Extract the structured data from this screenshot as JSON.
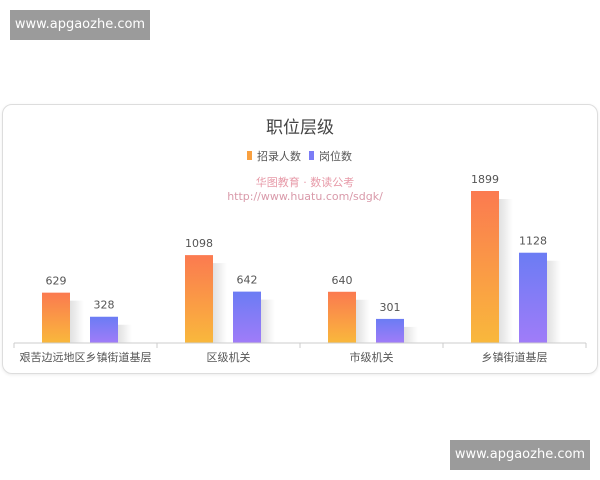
{
  "watermarks": [
    "www.apgaozhe.com",
    "www.apgaozhe.com"
  ],
  "chart_data": {
    "type": "bar",
    "title": "职位层级",
    "categories": [
      "艰苦边远地区乡镇街道基层",
      "区级机关",
      "市级机关",
      "乡镇街道基层"
    ],
    "series": [
      {
        "name": "招录人数",
        "values": [
          629,
          1098,
          640,
          1899
        ],
        "color": "#f9a040"
      },
      {
        "name": "岗位数",
        "values": [
          328,
          642,
          301,
          1128
        ],
        "color": "#7b7cf6"
      }
    ],
    "legend": "top-center",
    "grid": false,
    "ylim": [
      0,
      1950
    ],
    "source_text": [
      "华图教育 · 数读公考",
      "http://www.huatu.com/sdgk/"
    ]
  }
}
